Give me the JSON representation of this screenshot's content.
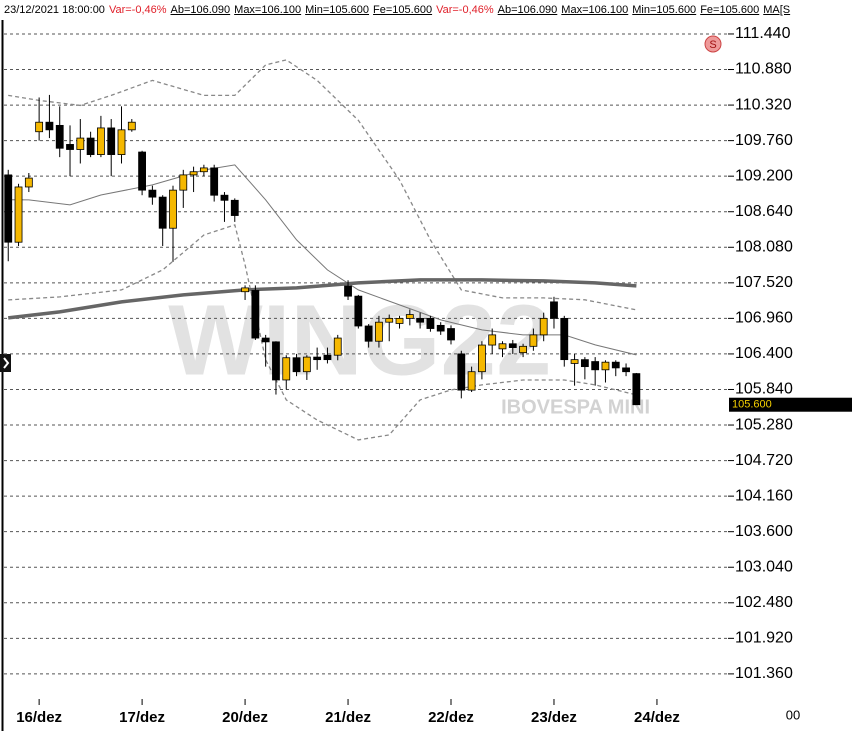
{
  "chart_data": {
    "type": "candlestick",
    "header_items": [
      {
        "text": "23/12/2021 18:00:00",
        "color": "#000000"
      },
      {
        "text": "Var=-0,46%",
        "color": "#e0202a"
      },
      {
        "text": "Ab=106.090",
        "color": "#000000"
      },
      {
        "text": "Max=106.100",
        "color": "#000000"
      },
      {
        "text": "Min=105.600",
        "color": "#000000"
      },
      {
        "text": "Fe=105.600",
        "color": "#000000"
      },
      {
        "text": "Var=-0,46%",
        "color": "#e0202a"
      },
      {
        "text": "Ab=106.090",
        "color": "#000000"
      },
      {
        "text": "Max=106.100",
        "color": "#000000"
      },
      {
        "text": "Min=105.600",
        "color": "#000000"
      },
      {
        "text": "Fe=105.600",
        "color": "#000000"
      },
      {
        "text": "MA[S",
        "color": "#000000"
      }
    ],
    "watermark": "WING22",
    "watermark_subtitle": "IBOVESPA MINI",
    "badge": "S",
    "time_label": "00",
    "last_price": {
      "value": 105600,
      "label": "105.600"
    },
    "up_color": "#f5b800",
    "down_color": "#000000",
    "grid": true,
    "xlim": [
      -0.8,
      69.9
    ],
    "xticks": [
      {
        "value": 3,
        "label": "16/dez"
      },
      {
        "value": 13,
        "label": "17/dez"
      },
      {
        "value": 23,
        "label": "20/dez"
      },
      {
        "value": 33,
        "label": "21/dez"
      },
      {
        "value": 43,
        "label": "22/dez"
      },
      {
        "value": 53,
        "label": "23/dez"
      },
      {
        "value": 63,
        "label": "24/dez"
      }
    ],
    "ylim": [
      100870,
      111660
    ],
    "yticks": [
      {
        "value": 101360,
        "label": "101.360"
      },
      {
        "value": 101920,
        "label": "101.920"
      },
      {
        "value": 102480,
        "label": "102.480"
      },
      {
        "value": 103040,
        "label": "103.040"
      },
      {
        "value": 103600,
        "label": "103.600"
      },
      {
        "value": 104160,
        "label": "104.160"
      },
      {
        "value": 104720,
        "label": "104.720"
      },
      {
        "value": 105280,
        "label": "105.280"
      },
      {
        "value": 105840,
        "label": "105.840"
      },
      {
        "value": 106400,
        "label": "106.400"
      },
      {
        "value": 106960,
        "label": "106.960"
      },
      {
        "value": 107520,
        "label": "107.520"
      },
      {
        "value": 108080,
        "label": "108.080"
      },
      {
        "value": 108640,
        "label": "108.640"
      },
      {
        "value": 109200,
        "label": "109.200"
      },
      {
        "value": 109760,
        "label": "109.760"
      },
      {
        "value": 110320,
        "label": "110.320"
      },
      {
        "value": 110880,
        "label": "110.880"
      },
      {
        "value": 111440,
        "label": "111.440"
      }
    ],
    "open": [
      109220,
      108160,
      109030,
      109900,
      110050,
      110000,
      109700,
      109620,
      109800,
      109540,
      109960,
      109540,
      109930,
      109580,
      108980,
      108870,
      108380,
      108980,
      109220,
      109270,
      109330,
      108900,
      108820,
      107380,
      107400,
      106650,
      106590,
      105990,
      106340,
      106120,
      106350,
      106380,
      106380,
      107470,
      107310,
      106840,
      106600,
      106900,
      106880,
      106960,
      106960,
      106960,
      106850,
      106800,
      106400,
      105830,
      106120,
      106540,
      106480,
      106560,
      106420,
      106520,
      106700,
      107220,
      106960,
      106250,
      106310,
      106280,
      106150,
      106270,
      106180,
      106090
    ],
    "high": [
      109300,
      109080,
      109250,
      110440,
      110480,
      110300,
      110000,
      110100,
      109900,
      110150,
      110100,
      110300,
      110100,
      109600,
      109050,
      108900,
      109050,
      109300,
      109350,
      109380,
      109380,
      108950,
      108850,
      107480,
      107480,
      106700,
      106600,
      106380,
      106400,
      106380,
      106500,
      106500,
      106700,
      107560,
      107330,
      106870,
      107000,
      107020,
      107000,
      107100,
      107050,
      107000,
      106900,
      106850,
      106450,
      106200,
      106600,
      106800,
      106600,
      106620,
      106560,
      106800,
      107050,
      107300,
      107000,
      106400,
      106350,
      106350,
      106300,
      106300,
      106250,
      106100
    ],
    "low": [
      107860,
      108100,
      108950,
      109760,
      109800,
      109500,
      109200,
      109400,
      109500,
      109500,
      109200,
      109400,
      109900,
      108900,
      108750,
      108100,
      107850,
      108700,
      108950,
      109200,
      108800,
      108480,
      108480,
      107250,
      106620,
      106200,
      105760,
      105840,
      106050,
      105990,
      106150,
      106250,
      106300,
      107250,
      106800,
      106500,
      106500,
      106600,
      106800,
      106850,
      106800,
      106750,
      106700,
      106550,
      105700,
      105800,
      106000,
      106400,
      106350,
      106400,
      106350,
      106450,
      106600,
      106800,
      106200,
      105900,
      106000,
      105900,
      105950,
      106050,
      106050,
      105600
    ],
    "close": [
      108160,
      109030,
      109170,
      110050,
      109930,
      109640,
      109620,
      109800,
      109540,
      109960,
      109540,
      109930,
      110050,
      108980,
      108870,
      108380,
      108980,
      109220,
      109270,
      109330,
      108900,
      108820,
      108580,
      107440,
      106650,
      106590,
      105990,
      106340,
      106120,
      106350,
      106310,
      106310,
      106650,
      107310,
      106840,
      106600,
      106900,
      106960,
      106960,
      107020,
      106900,
      106800,
      106760,
      106620,
      105830,
      106120,
      106540,
      106700,
      106560,
      106500,
      106520,
      106700,
      106960,
      106960,
      106310,
      106310,
      106200,
      106150,
      106270,
      106180,
      106120,
      105600
    ],
    "series": [
      {
        "color": "#777777",
        "style": "thin",
        "x": [
          0,
          2,
          6,
          9,
          14,
          19,
          22,
          25,
          28,
          31,
          34,
          38,
          42,
          46,
          50,
          54,
          57,
          61
        ],
        "values": [
          108830,
          108826,
          108747,
          108904,
          109062,
          109298,
          109377,
          108826,
          108196,
          107724,
          107409,
          107173,
          106936,
          106779,
          106700,
          106700,
          106542,
          106385
        ]
      },
      {
        "color": "#888888",
        "style": "dashed",
        "x": [
          0,
          3,
          7,
          10,
          14,
          19,
          22,
          25,
          27,
          30,
          34,
          38,
          41,
          44,
          48,
          52,
          56,
          61
        ],
        "values": [
          110472,
          110394,
          110315,
          110472,
          110709,
          110472,
          110472,
          110952,
          111031,
          110709,
          110080,
          109141,
          108196,
          107409,
          107283,
          107283,
          107252,
          107094
        ]
      },
      {
        "color": "#888888",
        "style": "dashed",
        "x": [
          0,
          5,
          11,
          15,
          19,
          22,
          23,
          25,
          27,
          30,
          34,
          37,
          40,
          43,
          46,
          50,
          54,
          57,
          61
        ],
        "values": [
          107251,
          107298,
          107408,
          107723,
          108274,
          108432,
          107802,
          106306,
          105676,
          105360,
          105046,
          105124,
          105676,
          105833,
          105912,
          105990,
          105990,
          105912,
          105754
        ]
      },
      {
        "color": "#666666",
        "style": "thick",
        "x": [
          0,
          5,
          11,
          17,
          23,
          28,
          34,
          40,
          46,
          52,
          57,
          61
        ],
        "values": [
          106967,
          107062,
          107219,
          107330,
          107409,
          107440,
          107519,
          107566,
          107566,
          107551,
          107519,
          107472
        ]
      }
    ]
  }
}
